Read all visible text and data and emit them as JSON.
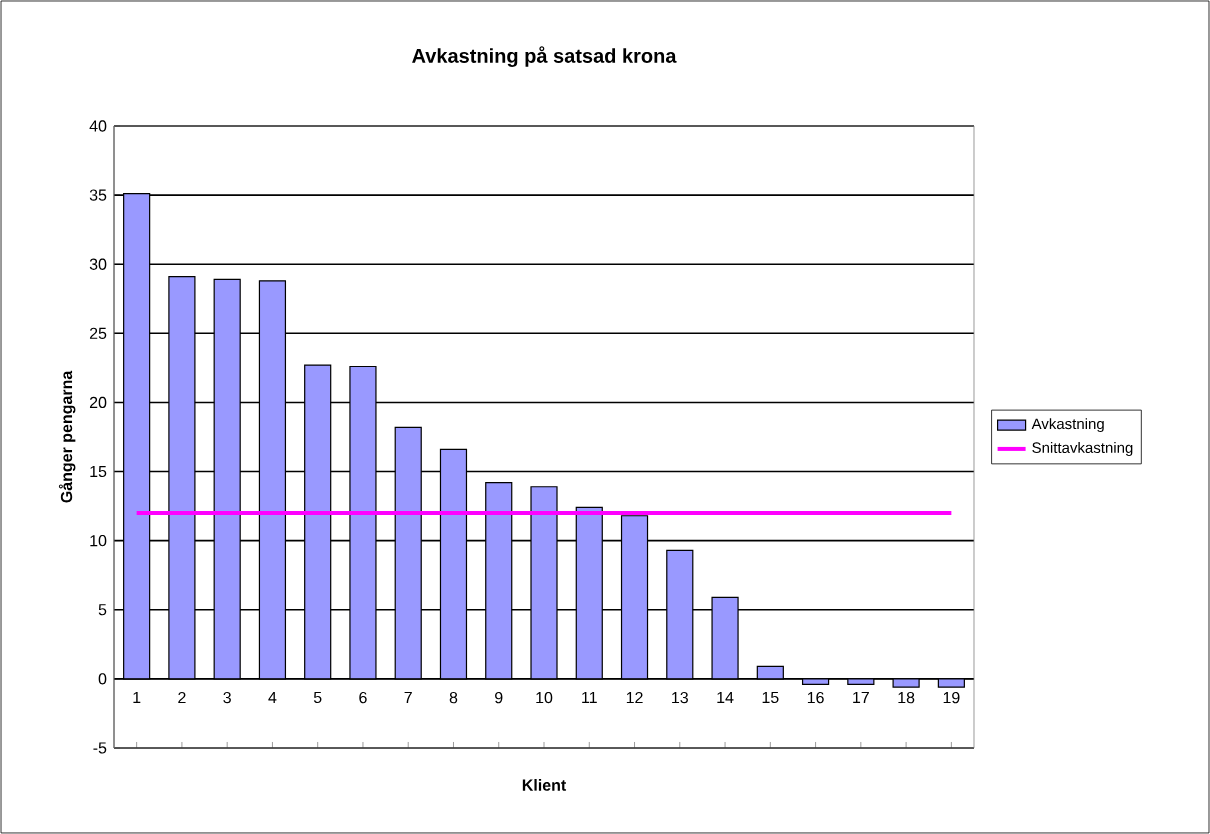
{
  "chart_data": {
    "type": "bar",
    "title": "Avkastning på satsad krona",
    "xlabel": "Klient",
    "ylabel": "Gånger pengarna",
    "categories": [
      "1",
      "2",
      "3",
      "4",
      "5",
      "6",
      "7",
      "8",
      "9",
      "10",
      "11",
      "12",
      "13",
      "14",
      "15",
      "16",
      "17",
      "18",
      "19"
    ],
    "series": [
      {
        "name": "Avkastning",
        "color": "#9999ff",
        "values": [
          35.1,
          29.1,
          28.9,
          28.8,
          22.7,
          22.6,
          18.2,
          16.6,
          14.2,
          13.9,
          12.4,
          11.8,
          9.3,
          5.9,
          0.9,
          -0.4,
          -0.4,
          -0.6,
          -0.6
        ]
      },
      {
        "name": "Snittavkastning",
        "type": "line",
        "color": "#ff00ff",
        "values": [
          12,
          12,
          12,
          12,
          12,
          12,
          12,
          12,
          12,
          12,
          12,
          12,
          12,
          12,
          12,
          12,
          12,
          12,
          12
        ]
      }
    ],
    "ylim": [
      -5,
      40
    ],
    "yticks": [
      -5,
      0,
      5,
      10,
      15,
      20,
      25,
      30,
      35,
      40
    ],
    "grid": "y",
    "legend": "right"
  }
}
